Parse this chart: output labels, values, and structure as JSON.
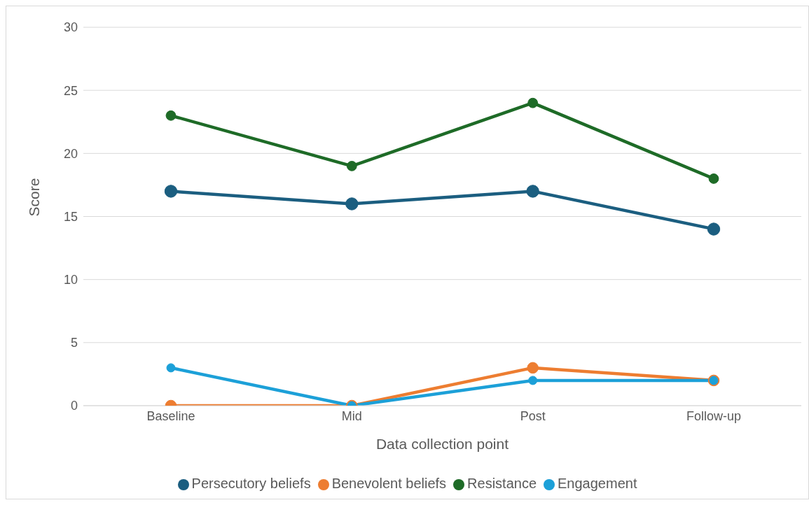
{
  "chart_data": {
    "type": "line",
    "xlabel": "Data collection point",
    "ylabel": "Score",
    "categories": [
      "Baseline",
      "Mid",
      "Post",
      "Follow-up"
    ],
    "series": [
      {
        "name": "Persecutory beliefs",
        "color": "#1b5e80",
        "values": [
          17,
          16,
          17,
          14
        ]
      },
      {
        "name": "Benevolent beliefs",
        "color": "#ed7d31",
        "values": [
          0,
          0,
          3,
          2
        ]
      },
      {
        "name": "Resistance",
        "color": "#1e6b27",
        "values": [
          23,
          19,
          24,
          18
        ]
      },
      {
        "name": "Engagement",
        "color": "#1ca0d8",
        "values": [
          3,
          0,
          2,
          2
        ]
      }
    ],
    "ylim": [
      0,
      30
    ],
    "yticks": [
      0,
      5,
      10,
      15,
      20,
      25,
      30
    ],
    "grid": "y",
    "legend": "bottom",
    "marker": "circle",
    "line_style": "solid"
  }
}
